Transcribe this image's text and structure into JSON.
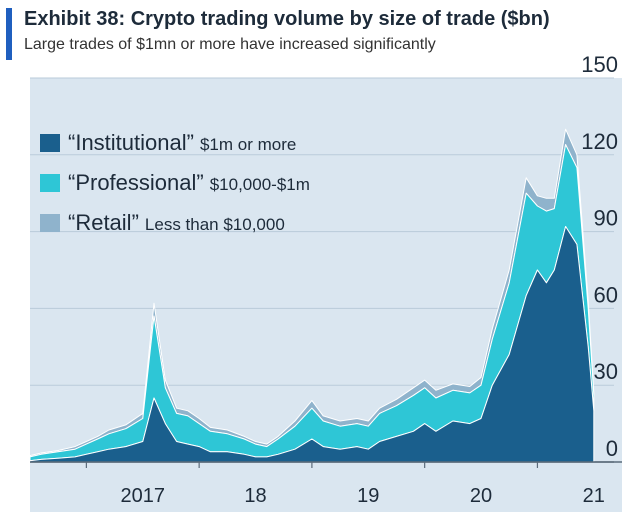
{
  "header": {
    "title": "Exhibit 38: Crypto trading volume by size of trade ($bn)",
    "subtitle": "Large trades of $1mn or more have increased significantly"
  },
  "colors": {
    "plot_bg": "#dae6f0",
    "grid": "#b9cbda",
    "institutional": "#1a5f8d",
    "professional": "#2ec6d6",
    "retail": "#8fb3cc",
    "accent": "#1f5fbf"
  },
  "chart_data": {
    "type": "area",
    "stacked": true,
    "title": "Exhibit 38: Crypto trading volume by size of trade ($bn)",
    "subtitle": "Large trades of $1mn or more have increased significantly",
    "ylim": [
      0,
      150
    ],
    "yticks": [
      0,
      30,
      60,
      90,
      120,
      150
    ],
    "ytick_labels": [
      "0",
      "30",
      "60",
      "90",
      "120",
      "150"
    ],
    "x_range": [
      2016.5,
      2021.75
    ],
    "xticks": [
      2017,
      2018,
      2019,
      2020,
      2021
    ],
    "xtick_labels": [
      "2017",
      "18",
      "19",
      "20",
      "21"
    ],
    "grid": true,
    "legend_position": "top-left",
    "x": [
      2016.5,
      2016.6,
      2016.75,
      2016.9,
      2017.0,
      2017.1,
      2017.2,
      2017.35,
      2017.5,
      2017.6,
      2017.7,
      2017.8,
      2017.9,
      2018.0,
      2018.1,
      2018.25,
      2018.4,
      2018.5,
      2018.6,
      2018.7,
      2018.85,
      2019.0,
      2019.1,
      2019.25,
      2019.4,
      2019.5,
      2019.6,
      2019.75,
      2019.9,
      2020.0,
      2020.1,
      2020.25,
      2020.4,
      2020.5,
      2020.6,
      2020.75,
      2020.9,
      2021.0,
      2021.08,
      2021.15,
      2021.25,
      2021.35,
      2021.45,
      2021.5
    ],
    "series": [
      {
        "name": "“Institutional”",
        "description": "$1m or more",
        "values": [
          0.5,
          1,
          1.5,
          2,
          3,
          4,
          5,
          6,
          8,
          25,
          15,
          8,
          7,
          6,
          4,
          4,
          3,
          2,
          2,
          3,
          5,
          9,
          6,
          5,
          6,
          5,
          8,
          10,
          12,
          15,
          12,
          16,
          15,
          17,
          30,
          42,
          65,
          75,
          70,
          75,
          92,
          85,
          45,
          20
        ]
      },
      {
        "name": "“Professional”",
        "description": "$10,000-$1m",
        "values": [
          1.5,
          2,
          2.5,
          3,
          4,
          5,
          6,
          7,
          9,
          32,
          14,
          11,
          11,
          9,
          8,
          7,
          6,
          5,
          4,
          6,
          9,
          12,
          10,
          9,
          9,
          9,
          11,
          12,
          14,
          14,
          13,
          12,
          12,
          13,
          18,
          28,
          40,
          25,
          28,
          24,
          32,
          30,
          15,
          6
        ]
      },
      {
        "name": "“Retail”",
        "description": "Less than $10,000",
        "values": [
          0.5,
          0.5,
          0.5,
          1,
          1,
          1,
          1.5,
          1.5,
          2,
          5,
          3,
          2,
          2,
          2,
          1.5,
          1.5,
          1,
          1,
          1,
          1,
          2,
          3,
          2,
          2,
          2,
          2,
          2,
          2.5,
          3,
          3,
          3,
          2.5,
          2.5,
          3,
          4,
          5,
          6,
          4,
          5,
          4,
          6,
          5,
          3,
          1
        ]
      }
    ]
  }
}
